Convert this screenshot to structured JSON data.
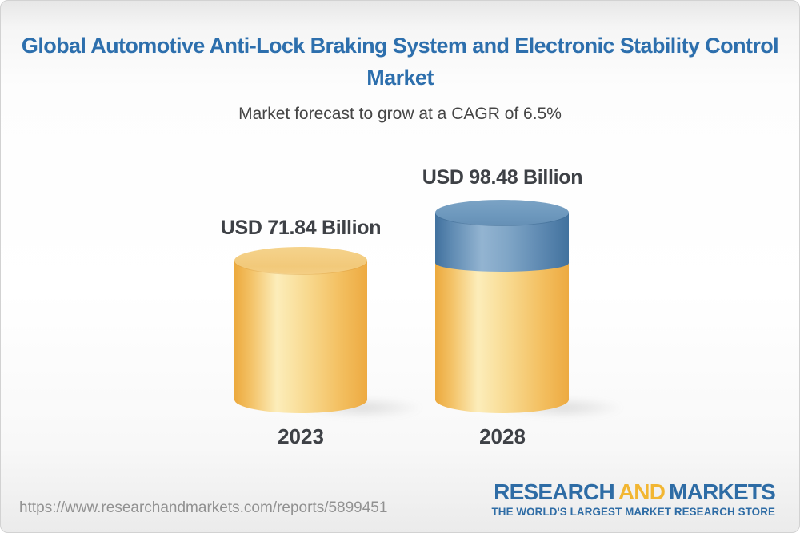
{
  "header": {
    "title": "Global Automotive Anti-Lock Braking System and Electronic Stability Control Market",
    "subtitle": "Market forecast to grow at a CAGR of 6.5%"
  },
  "chart_data": {
    "type": "bar",
    "variant": "3d-cylinder",
    "categories": [
      "2023",
      "2028"
    ],
    "values": [
      71.84,
      98.48
    ],
    "value_labels": [
      "USD 71.84 Billion",
      "USD 98.48 Billion"
    ],
    "unit": "USD Billion",
    "cagr_percent": 6.5,
    "ylim": [
      0,
      100
    ],
    "grid": false,
    "legend": null,
    "bar_colors": {
      "base_yellow": "#F2C572",
      "growth_blue": "#5E8AB2"
    },
    "notes": "2028 cylinder shows base value in yellow plus growth segment (98.48 - 71.84 = 26.64) in blue on top"
  },
  "footer": {
    "url": "https://www.researchandmarkets.com/reports/5899451",
    "logo": {
      "research": "RESEARCH",
      "and": "AND",
      "markets": "MARKETS",
      "tagline": "THE WORLD'S LARGEST MARKET RESEARCH STORE",
      "brand_blue": "#2E6CA5",
      "brand_yellow": "#F2B632"
    }
  },
  "colors": {
    "title": "#2D6FAD",
    "subtitle": "#454545",
    "bar_label": "#3E4146",
    "url_text": "#919191",
    "card_border": "#D2D2D2"
  }
}
